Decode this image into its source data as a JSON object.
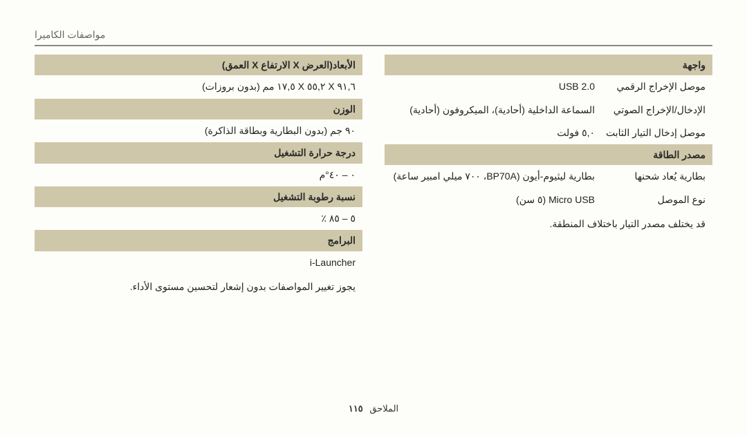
{
  "page_title": "مواصفات الكاميرا",
  "footer": {
    "label": "الملاحق",
    "page": "١١٥"
  },
  "right_col": {
    "interface_header": "واجهة",
    "rows_interface": [
      {
        "label": "موصل الإخراج الرقمي",
        "value": "USB 2.0"
      },
      {
        "label": "الإدخال/الإخراج الصوتي",
        "value": "السماعة الداخلية (أحادية)، الميكروفون (أحادية)"
      },
      {
        "label": "موصل إدخال التيار الثابت",
        "value": "٥,٠ فولت"
      }
    ],
    "power_header": "مصدر الطاقة",
    "rows_power": [
      {
        "label": "بطارية يُعاد شحنها",
        "value": "بطارية ليثيوم-أيون (BP70A، ٧٠٠ ميلي امبير ساعة)"
      },
      {
        "label": "نوع الموصل",
        "value": "Micro USB (٥ سن)"
      }
    ],
    "power_note": "قد يختلف مصدر التيار باختلاف المنطقة."
  },
  "left_col": {
    "headers": {
      "dimensions": "الأبعاد(العرض X الارتفاع X العمق)",
      "weight": "الوزن",
      "temp": "درجة حرارة التشغيل",
      "humidity": "نسبة رطوبة التشغيل",
      "software": "البرامج"
    },
    "values": {
      "dimensions": "٩١,٦ X ٥٥,٢ X ١٧,٥ مم (بدون بروزات)",
      "weight": "٩٠ جم (بدون البطارية وبطاقة الذاكرة)",
      "temp": "٠ – ٤٠°م",
      "humidity": "٥ – ٨٥ ٪",
      "software": "i-Launcher"
    },
    "disclaimer": "يجوز تغيير المواصفات بدون إشعار لتحسين مستوى الأداء."
  }
}
